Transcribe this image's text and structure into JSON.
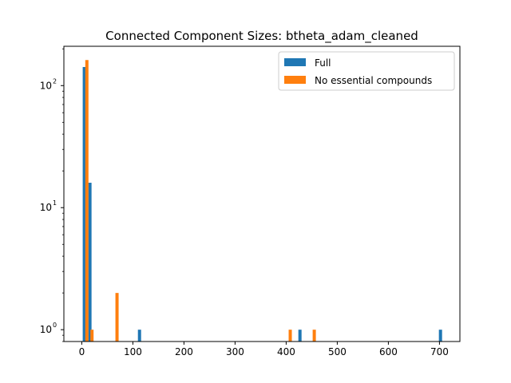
{
  "chart_data": {
    "type": "bar",
    "title": "Connected Component Sizes: btheta_adam_cleaned",
    "xlabel": "",
    "ylabel": "",
    "y_scale": "log",
    "xlim": [
      -35,
      740
    ],
    "ylim": [
      0.8,
      210
    ],
    "x_ticks": [
      0,
      100,
      200,
      300,
      400,
      500,
      600,
      700
    ],
    "x_tick_labels": [
      "0",
      "100",
      "200",
      "300",
      "400",
      "500",
      "600",
      "700"
    ],
    "y_ticks": [
      1,
      10,
      100
    ],
    "y_tick_labels": [
      "10",
      "10",
      "10"
    ],
    "y_tick_exponents": [
      "0",
      "1",
      "2"
    ],
    "legend_position": "top-right",
    "series": [
      {
        "name": "Full",
        "color": "#1f77b4",
        "bars": [
          {
            "x": 5,
            "value": 142
          },
          {
            "x": 16,
            "value": 16
          },
          {
            "x": 113,
            "value": 1
          },
          {
            "x": 427,
            "value": 1
          },
          {
            "x": 702,
            "value": 1
          }
        ]
      },
      {
        "name": "No essential compounds",
        "color": "#ff7f0e",
        "bars": [
          {
            "x": 10,
            "value": 162
          },
          {
            "x": 20,
            "value": 1
          },
          {
            "x": 69,
            "value": 2
          },
          {
            "x": 408,
            "value": 1
          },
          {
            "x": 455,
            "value": 1
          }
        ]
      }
    ]
  }
}
